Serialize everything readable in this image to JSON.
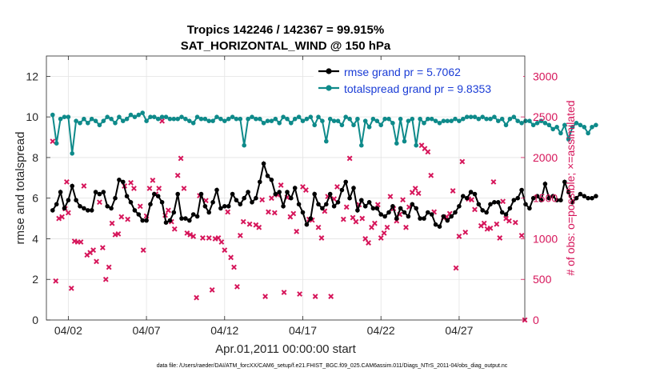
{
  "chart_data": {
    "type": "line",
    "title_line1": "Tropics 142246 / 142367 = 99.915%",
    "title_line2": "SAT_HORIZONTAL_WIND @ 150 hPa",
    "xlabel": "Apr.01,2011 00:00:00 start",
    "ylabel_left": "rmse and totalspread",
    "ylabel_right": "# of obs: o=possible; ×=assimilated",
    "footer": "data file: /Users/raeder/DAI/ATM_forcXX/CAM6_setup/f.e21.FHIST_BGC.f09_025.CAM6assim.011/Diags_NTrS_2011-04/obs_diag_output.nc",
    "xlim": [
      0.6,
      31.2
    ],
    "ylim_left": [
      0,
      13
    ],
    "ylim_right": [
      0,
      3250
    ],
    "x_ticks": [
      {
        "x": 2,
        "label": "04/02"
      },
      {
        "x": 7,
        "label": "04/07"
      },
      {
        "x": 12,
        "label": "04/12"
      },
      {
        "x": 17,
        "label": "04/17"
      },
      {
        "x": 22,
        "label": "04/22"
      },
      {
        "x": 27,
        "label": "04/27"
      }
    ],
    "y_ticks_left": [
      0,
      2,
      4,
      6,
      8,
      10,
      12
    ],
    "y_ticks_right": [
      0,
      500,
      1000,
      1500,
      2000,
      2500,
      3000
    ],
    "grid": true,
    "legend_position": "top-right",
    "colors": {
      "rmse": "#000000",
      "spread": "#0e8a8a",
      "obs": "#d6155a",
      "right_axis": "#d6155a",
      "legend_text": "#1a3cd6"
    },
    "time_start": 1.0,
    "time_step": 0.25,
    "series": [
      {
        "name": "rmse grand pr = 5.7062",
        "key": "rmse",
        "values": [
          5.4,
          5.7,
          6.3,
          5.5,
          5.9,
          6.6,
          5.9,
          5.6,
          5.5,
          5.4,
          5.4,
          6.3,
          6.2,
          6.3,
          5.6,
          5.5,
          6.0,
          6.9,
          6.8,
          6.1,
          5.8,
          5.4,
          5.2,
          4.9,
          4.9,
          5.7,
          6.2,
          6.1,
          5.8,
          4.8,
          4.9,
          5.3,
          6.2,
          5.0,
          5.0,
          4.9,
          5.2,
          5.1,
          6.2,
          5.6,
          5.3,
          5.8,
          6.4,
          5.5,
          5.6,
          5.6,
          6.2,
          5.9,
          5.7,
          6.0,
          6.3,
          5.8,
          6.0,
          6.8,
          7.7,
          7.1,
          6.9,
          6.2,
          6.3,
          5.6,
          6.3,
          6.0,
          6.5,
          5.7,
          5.3,
          4.7,
          5.0,
          6.2,
          5.7,
          5.5,
          5.7,
          6.2,
          5.6,
          5.8,
          6.4,
          6.8,
          6.0,
          6.5,
          5.4,
          5.9,
          5.6,
          5.8,
          5.5,
          5.5,
          5.2,
          5.1,
          5.3,
          5.6,
          5.0,
          5.5,
          5.3,
          5.1,
          5.7,
          5.5,
          5.0,
          5.0,
          5.3,
          5.2,
          4.7,
          4.6,
          5.1,
          4.9,
          5.1,
          5.3,
          5.6,
          6.1,
          6.0,
          6.3,
          6.2,
          5.7,
          5.4,
          5.3,
          5.7,
          5.8,
          5.8,
          5.3,
          5.2,
          5.5,
          5.9,
          6.0,
          6.4,
          5.7,
          5.5,
          6.0,
          6.1,
          5.9,
          6.7,
          6.0,
          6.1,
          5.9,
          5.9,
          6.8,
          6.3,
          5.8,
          6.0,
          6.2,
          6.1,
          6.0,
          6.0,
          6.1
        ]
      },
      {
        "name": "totalspread grand pr = 9.8353",
        "key": "spread",
        "values": [
          10.1,
          8.7,
          9.9,
          10.0,
          10.0,
          8.2,
          9.8,
          9.7,
          9.9,
          9.7,
          9.9,
          9.8,
          9.6,
          9.8,
          10.0,
          9.9,
          9.7,
          10.0,
          9.8,
          9.9,
          10.1,
          10.0,
          10.1,
          10.2,
          9.8,
          10.0,
          10.0,
          9.9,
          10.0,
          10.0,
          9.9,
          9.9,
          9.9,
          10.0,
          9.9,
          9.8,
          9.7,
          10.0,
          9.9,
          9.9,
          9.8,
          9.8,
          10.0,
          9.9,
          9.8,
          9.9,
          10.0,
          9.9,
          9.9,
          8.6,
          9.9,
          10.0,
          9.9,
          9.9,
          9.7,
          9.8,
          9.8,
          9.9,
          9.7,
          10.0,
          9.9,
          9.7,
          9.9,
          10.0,
          9.8,
          9.9,
          10.0,
          9.6,
          10.0,
          9.8,
          8.8,
          9.9,
          9.8,
          9.8,
          9.6,
          10.0,
          9.9,
          9.6,
          9.9,
          8.6,
          9.8,
          9.5,
          9.9,
          9.8,
          9.6,
          9.9,
          9.9,
          9.7,
          8.7,
          9.9,
          8.8,
          9.8,
          9.9,
          8.6,
          9.9,
          9.7,
          9.9,
          9.9,
          9.8,
          9.7,
          9.8,
          9.8,
          9.8,
          9.9,
          9.8,
          9.9,
          10.0,
          10.0,
          10.0,
          9.9,
          10.0,
          9.9,
          9.9,
          10.0,
          9.8,
          9.9,
          9.6,
          9.9,
          10.0,
          9.8,
          9.7,
          9.8,
          9.8,
          9.6,
          9.7,
          9.8,
          9.7,
          9.6,
          9.4,
          9.5,
          9.2,
          9.6,
          8.9,
          9.5,
          9.7,
          9.6,
          9.5,
          9.2,
          9.5,
          9.6
        ]
      },
      {
        "name": "obs assimilated",
        "key": "obs",
        "points": [
          [
            1.0,
            2200
          ],
          [
            1.2,
            480
          ],
          [
            1.4,
            1250
          ],
          [
            1.6,
            1270
          ],
          [
            1.8,
            1370
          ],
          [
            1.9,
            1700
          ],
          [
            2.0,
            1320
          ],
          [
            2.2,
            390
          ],
          [
            2.4,
            970
          ],
          [
            2.6,
            960
          ],
          [
            2.8,
            960
          ],
          [
            3.0,
            1650
          ],
          [
            3.2,
            800
          ],
          [
            3.4,
            830
          ],
          [
            3.6,
            860
          ],
          [
            3.8,
            720
          ],
          [
            4.0,
            1450
          ],
          [
            4.2,
            890
          ],
          [
            4.4,
            500
          ],
          [
            4.6,
            650
          ],
          [
            4.8,
            1190
          ],
          [
            5.0,
            1050
          ],
          [
            5.2,
            1060
          ],
          [
            5.4,
            1270
          ],
          [
            5.6,
            1650
          ],
          [
            5.8,
            1240
          ],
          [
            6.0,
            1690
          ],
          [
            6.2,
            1620
          ],
          [
            6.6,
            1400
          ],
          [
            6.8,
            860
          ],
          [
            7.0,
            1280
          ],
          [
            7.2,
            1620
          ],
          [
            7.4,
            1720
          ],
          [
            7.6,
            1550
          ],
          [
            7.8,
            1620
          ],
          [
            8.0,
            2450
          ],
          [
            8.2,
            1290
          ],
          [
            8.4,
            1350
          ],
          [
            8.6,
            1210
          ],
          [
            8.8,
            1120
          ],
          [
            9.0,
            1780
          ],
          [
            9.2,
            1990
          ],
          [
            9.4,
            1620
          ],
          [
            9.6,
            1070
          ],
          [
            9.8,
            1050
          ],
          [
            10.0,
            1030
          ],
          [
            10.2,
            275
          ],
          [
            10.4,
            1530
          ],
          [
            10.6,
            1010
          ],
          [
            10.8,
            1470
          ],
          [
            11.0,
            1010
          ],
          [
            11.2,
            370
          ],
          [
            11.4,
            1000
          ],
          [
            11.6,
            1010
          ],
          [
            11.8,
            960
          ],
          [
            12.0,
            860
          ],
          [
            12.2,
            1330
          ],
          [
            12.4,
            770
          ],
          [
            12.6,
            650
          ],
          [
            12.8,
            410
          ],
          [
            13.0,
            1040
          ],
          [
            13.2,
            1210
          ],
          [
            13.6,
            1180
          ],
          [
            14.0,
            1170
          ],
          [
            14.2,
            1140
          ],
          [
            14.4,
            1480
          ],
          [
            14.6,
            290
          ],
          [
            14.8,
            1330
          ],
          [
            15.0,
            1500
          ],
          [
            15.2,
            1320
          ],
          [
            15.4,
            1540
          ],
          [
            15.6,
            1660
          ],
          [
            15.8,
            340
          ],
          [
            16.0,
            1510
          ],
          [
            16.2,
            1270
          ],
          [
            16.4,
            1310
          ],
          [
            16.6,
            1090
          ],
          [
            16.8,
            320
          ],
          [
            17.0,
            1640
          ],
          [
            17.2,
            1600
          ],
          [
            17.4,
            1240
          ],
          [
            17.6,
            1230
          ],
          [
            17.8,
            290
          ],
          [
            18.0,
            1140
          ],
          [
            18.2,
            1010
          ],
          [
            18.4,
            1340
          ],
          [
            18.6,
            1520
          ],
          [
            18.8,
            290
          ],
          [
            19.0,
            1490
          ],
          [
            19.2,
            1640
          ],
          [
            19.6,
            1240
          ],
          [
            19.8,
            1390
          ],
          [
            20.0,
            1990
          ],
          [
            20.2,
            1260
          ],
          [
            20.4,
            1210
          ],
          [
            20.6,
            1420
          ],
          [
            20.8,
            1250
          ],
          [
            21.0,
            1000
          ],
          [
            21.2,
            950
          ],
          [
            21.4,
            1140
          ],
          [
            21.6,
            1190
          ],
          [
            21.8,
            1420
          ],
          [
            22.0,
            1010
          ],
          [
            22.2,
            1070
          ],
          [
            22.4,
            1140
          ],
          [
            22.6,
            1520
          ],
          [
            22.8,
            1370
          ],
          [
            23.0,
            1220
          ],
          [
            23.2,
            1300
          ],
          [
            23.4,
            1480
          ],
          [
            23.6,
            1140
          ],
          [
            23.8,
            1390
          ],
          [
            24.0,
            1570
          ],
          [
            24.2,
            1620
          ],
          [
            24.4,
            1560
          ],
          [
            24.6,
            2150
          ],
          [
            24.8,
            2110
          ],
          [
            25.0,
            2070
          ],
          [
            25.2,
            1780
          ],
          [
            25.4,
            1330
          ],
          [
            26.0,
            1260
          ],
          [
            26.2,
            1270
          ],
          [
            26.4,
            1310
          ],
          [
            26.6,
            1590
          ],
          [
            26.8,
            640
          ],
          [
            27.0,
            1030
          ],
          [
            27.2,
            1950
          ],
          [
            27.4,
            1080
          ],
          [
            27.6,
            1490
          ],
          [
            27.8,
            1480
          ],
          [
            28.0,
            1360
          ],
          [
            28.4,
            1160
          ],
          [
            28.6,
            1190
          ],
          [
            28.8,
            1120
          ],
          [
            29.0,
            1130
          ],
          [
            29.2,
            1700
          ],
          [
            29.4,
            1180
          ],
          [
            29.6,
            1010
          ],
          [
            29.8,
            1460
          ],
          [
            30.0,
            1250
          ],
          [
            30.2,
            1220
          ],
          [
            30.6,
            1200
          ],
          [
            31.0,
            1040
          ],
          [
            31.2,
            0
          ]
        ]
      }
    ]
  }
}
